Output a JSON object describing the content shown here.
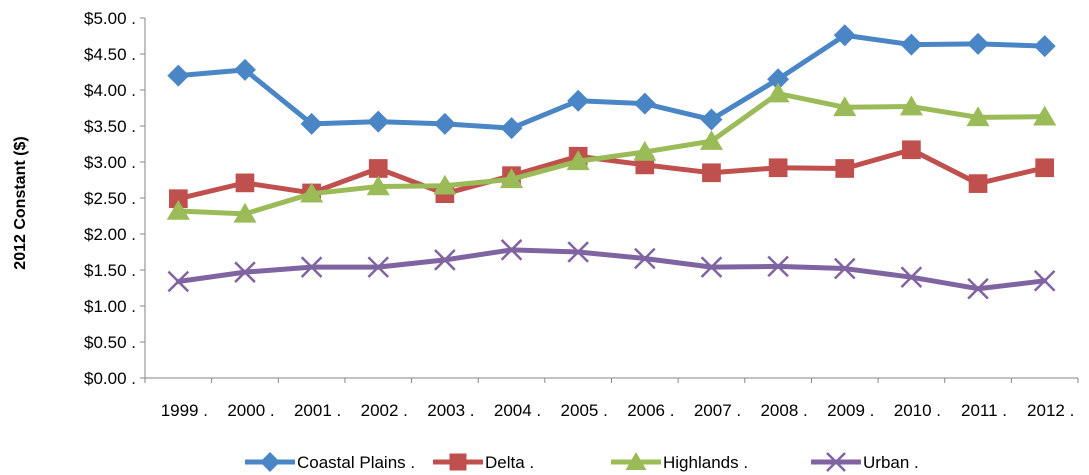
{
  "chart_data": {
    "type": "line",
    "title": "",
    "xlabel": "",
    "ylabel": "2012 Constant ($)",
    "ylim": [
      0,
      5
    ],
    "y_ticks": [
      "$0.00 .",
      "$0.50 .",
      "$1.00 .",
      "$1.50 .",
      "$2.00 .",
      "$2.50 .",
      "$3.00 .",
      "$3.50 .",
      "$4.00 .",
      "$4.50 .",
      "$5.00 ."
    ],
    "categories": [
      "1999 .",
      "2000 .",
      "2001 .",
      "2002 .",
      "2003 .",
      "2004 .",
      "2005 .",
      "2006 .",
      "2007 .",
      "2008 .",
      "2009 .",
      "2010 .",
      "2011 .",
      "2012 ."
    ],
    "grid": false,
    "legend_position": "bottom",
    "series": [
      {
        "name": "Coastal Plains .",
        "color": "#4a86c5",
        "marker": "diamond",
        "values": [
          4.2,
          4.28,
          3.53,
          3.56,
          3.53,
          3.47,
          3.85,
          3.81,
          3.59,
          4.15,
          4.76,
          4.63,
          4.64,
          4.61
        ]
      },
      {
        "name": "Delta .",
        "color": "#c0504d",
        "marker": "square",
        "values": [
          2.49,
          2.71,
          2.57,
          2.91,
          2.56,
          2.81,
          3.08,
          2.96,
          2.85,
          2.92,
          2.91,
          3.17,
          2.7,
          2.92
        ]
      },
      {
        "name": "Highlands .",
        "color": "#9bbb59",
        "marker": "triangle",
        "values": [
          2.32,
          2.28,
          2.56,
          2.66,
          2.67,
          2.76,
          3.01,
          3.14,
          3.29,
          3.95,
          3.76,
          3.77,
          3.62,
          3.63
        ]
      },
      {
        "name": "Urban .",
        "color": "#8064a2",
        "marker": "x",
        "values": [
          1.34,
          1.47,
          1.54,
          1.54,
          1.64,
          1.78,
          1.75,
          1.66,
          1.54,
          1.55,
          1.52,
          1.4,
          1.24,
          1.35
        ]
      }
    ]
  }
}
